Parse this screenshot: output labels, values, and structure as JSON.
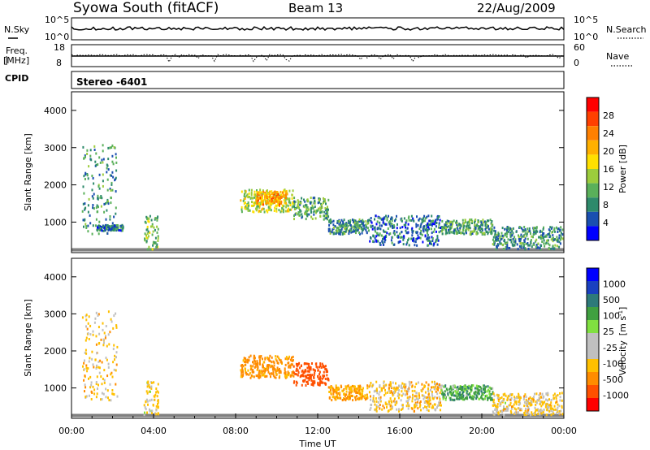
{
  "header": {
    "station": "Syowa South (fitACF)",
    "beam": "Beam 13",
    "date": "22/Aug/2009"
  },
  "strip_panels": {
    "nsky_label": "N.Sky",
    "nsearch_label": "N.Search",
    "nsky_ticks": [
      "10^5",
      "10^0"
    ],
    "nsearch_ticks": [
      "10^5",
      "10^0"
    ],
    "freq_label": "Freq.",
    "freq_unit": "[MHz]",
    "freq_ticks": [
      "18",
      "8"
    ],
    "nave_label": "Nave",
    "nave_ticks": [
      "60",
      "0"
    ],
    "cpid_label": "CPID",
    "cpid_value": "Stereo  -6401"
  },
  "colors": {
    "power_scale": [
      "#0000ff",
      "#1a4fb0",
      "#2e8a6b",
      "#5ab05a",
      "#9ccc3c",
      "#ffe000",
      "#ffb000",
      "#ff8000",
      "#ff4000",
      "#ff0000"
    ],
    "velocity_scale": [
      "#ff0000",
      "#ff5000",
      "#ff8c00",
      "#ffc000",
      "#c0c0c0",
      "#c0c0c0",
      "#80e040",
      "#40a040",
      "#2e7a7a",
      "#1a40c0",
      "#0000ff"
    ],
    "ground_scatter": "#808080"
  },
  "chart_data": [
    {
      "type": "heatmap",
      "panel": "power",
      "ylabel": "Slant Range [km]",
      "y_ticks": [
        "4000",
        "3000",
        "2000",
        "1000"
      ],
      "colorbar_label": "Power [dB]",
      "colorbar_ticks": [
        "28",
        "24",
        "20",
        "16",
        "12",
        "8",
        "4"
      ],
      "ylim": [
        180,
        4500
      ],
      "zlim": [
        0,
        30
      ],
      "regions": [
        {
          "t0": 0.5,
          "t1": 2.2,
          "r0": 700,
          "r1": 3100,
          "z": 8
        },
        {
          "t0": 1.2,
          "t1": 2.5,
          "r0": 800,
          "r1": 950,
          "z": 6
        },
        {
          "t0": 3.5,
          "t1": 4.2,
          "r0": 300,
          "r1": 1200,
          "z": 12
        },
        {
          "t0": 8.2,
          "t1": 10.8,
          "r0": 1300,
          "r1": 1900,
          "z": 14
        },
        {
          "t0": 9.0,
          "t1": 10.5,
          "r0": 1500,
          "r1": 1850,
          "z": 20
        },
        {
          "t0": 10.8,
          "t1": 12.5,
          "r0": 1100,
          "r1": 1700,
          "z": 10
        },
        {
          "t0": 12.5,
          "t1": 14.5,
          "r0": 700,
          "r1": 1100,
          "z": 8
        },
        {
          "t0": 14.5,
          "t1": 18.0,
          "r0": 400,
          "r1": 1200,
          "z": 6
        },
        {
          "t0": 18.0,
          "t1": 20.5,
          "r0": 700,
          "r1": 1100,
          "z": 10
        },
        {
          "t0": 20.5,
          "t1": 23.9,
          "r0": 300,
          "r1": 900,
          "z": 8
        }
      ]
    },
    {
      "type": "heatmap",
      "panel": "velocity",
      "xlabel": "Time UT",
      "ylabel": "Slant Range [km]",
      "x_ticks": [
        "00:00",
        "04:00",
        "08:00",
        "12:00",
        "16:00",
        "20:00",
        "00:00"
      ],
      "y_ticks": [
        "4000",
        "3000",
        "2000",
        "1000"
      ],
      "colorbar_label": "Velocity",
      "colorbar_unit": "[m s",
      "colorbar_unit_exp": "-1",
      "colorbar_unit_end": "]",
      "colorbar_ticks": [
        "1000",
        "500",
        "100",
        "25",
        "-25",
        "-100",
        "-500",
        "-1000"
      ],
      "ylim": [
        180,
        4500
      ],
      "regions": [
        {
          "t0": 0.5,
          "t1": 2.2,
          "r0": 700,
          "r1": 3100,
          "v": -150
        },
        {
          "t0": 3.5,
          "t1": 4.2,
          "r0": 300,
          "r1": 1200,
          "v": -100
        },
        {
          "t0": 8.2,
          "t1": 10.8,
          "r0": 1300,
          "r1": 1900,
          "v": -350
        },
        {
          "t0": 10.8,
          "t1": 12.5,
          "r0": 1100,
          "r1": 1700,
          "v": -700
        },
        {
          "t0": 12.5,
          "t1": 14.5,
          "r0": 700,
          "r1": 1100,
          "v": -250
        },
        {
          "t0": 14.5,
          "t1": 18.0,
          "r0": 400,
          "r1": 1200,
          "v": -150
        },
        {
          "t0": 18.0,
          "t1": 20.5,
          "r0": 700,
          "r1": 1100,
          "v": 150
        },
        {
          "t0": 20.5,
          "t1": 23.9,
          "r0": 300,
          "r1": 900,
          "v": -120
        }
      ]
    }
  ]
}
